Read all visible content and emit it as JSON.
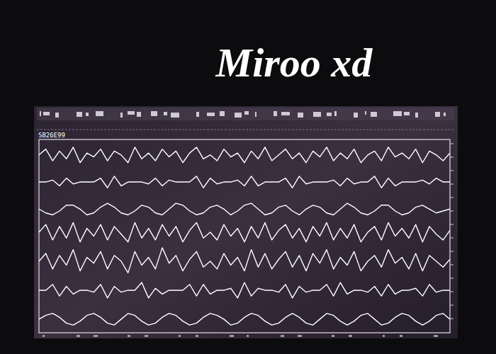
{
  "chart_data": {
    "type": "line",
    "title": "Miroo xd",
    "subtitle": "SB26E99",
    "x": [
      0,
      1,
      2,
      3,
      4,
      5,
      6,
      7,
      8,
      9,
      10,
      11,
      12,
      13,
      14,
      15,
      16,
      17,
      18,
      19,
      20,
      21,
      22,
      23,
      24,
      25,
      26,
      27,
      28,
      29,
      30,
      31,
      32,
      33,
      34,
      35,
      36,
      37,
      38,
      39,
      40,
      41,
      42,
      43,
      44,
      45,
      46,
      47,
      48,
      49,
      50,
      51,
      52,
      53,
      54,
      55,
      56,
      57,
      58,
      59,
      60
    ],
    "xlim": [
      0,
      60
    ],
    "ylim": [
      0,
      100
    ],
    "tick_labels": false,
    "grid": false,
    "series": [
      {
        "color": "#ffffff",
        "values": [
          92,
          95,
          89,
          94,
          90,
          96,
          88,
          93,
          91,
          95,
          89,
          94,
          92,
          88,
          96,
          90,
          93,
          89,
          95,
          91,
          94,
          88,
          93,
          96,
          90,
          92,
          89,
          95,
          91,
          93,
          88,
          94,
          90,
          96,
          89,
          92,
          95,
          90,
          93,
          88,
          94,
          91,
          96,
          89,
          93,
          90,
          95,
          88,
          92,
          94,
          89,
          96,
          91,
          93,
          90,
          95,
          88,
          94,
          92,
          89,
          93
        ]
      },
      {
        "color": "#ffffff",
        "values": [
          78,
          78,
          79,
          76,
          80,
          77,
          78,
          78,
          78,
          80,
          75,
          81,
          76,
          78,
          78,
          78,
          77,
          80,
          76,
          79,
          78,
          78,
          78,
          81,
          75,
          80,
          77,
          78,
          78,
          79,
          76,
          81,
          76,
          78,
          78,
          78,
          80,
          75,
          81,
          77,
          78,
          78,
          78,
          79,
          76,
          80,
          77,
          78,
          78,
          81,
          75,
          80,
          76,
          78,
          78,
          78,
          79,
          77,
          80,
          78,
          78
        ]
      },
      {
        "color": "#ffffff",
        "values": [
          64,
          62,
          61,
          63,
          66,
          66,
          64,
          61,
          62,
          65,
          67,
          65,
          62,
          61,
          63,
          66,
          65,
          62,
          61,
          64,
          67,
          66,
          63,
          61,
          62,
          65,
          66,
          64,
          61,
          63,
          66,
          67,
          64,
          61,
          62,
          65,
          66,
          63,
          61,
          64,
          66,
          65,
          62,
          61,
          64,
          67,
          65,
          62,
          61,
          63,
          66,
          66,
          63,
          61,
          62,
          65,
          66,
          64,
          62,
          63,
          64
        ]
      },
      {
        "color": "#ffffff",
        "values": [
          52,
          56,
          48,
          55,
          49,
          57,
          47,
          54,
          50,
          56,
          48,
          55,
          51,
          47,
          57,
          49,
          54,
          48,
          56,
          50,
          55,
          47,
          53,
          57,
          49,
          52,
          48,
          56,
          50,
          54,
          47,
          55,
          49,
          57,
          48,
          53,
          56,
          49,
          54,
          47,
          55,
          50,
          57,
          48,
          54,
          49,
          56,
          47,
          52,
          55,
          48,
          57,
          50,
          54,
          49,
          56,
          47,
          55,
          51,
          48,
          53
        ]
      },
      {
        "color": "#ffffff",
        "values": [
          37,
          41,
          33,
          40,
          35,
          43,
          32,
          39,
          36,
          42,
          33,
          40,
          37,
          31,
          42,
          35,
          39,
          33,
          44,
          36,
          40,
          32,
          38,
          42,
          34,
          37,
          33,
          41,
          35,
          39,
          32,
          43,
          34,
          41,
          33,
          38,
          42,
          34,
          40,
          32,
          41,
          36,
          43,
          33,
          39,
          35,
          42,
          32,
          37,
          40,
          34,
          43,
          36,
          39,
          33,
          41,
          32,
          40,
          37,
          34,
          38
        ]
      },
      {
        "color": "#ffffff",
        "values": [
          22,
          22,
          25,
          19,
          24,
          20,
          22,
          22,
          21,
          25,
          18,
          24,
          21,
          22,
          22,
          26,
          18,
          23,
          20,
          22,
          22,
          22,
          25,
          19,
          25,
          20,
          22,
          22,
          23,
          18,
          26,
          19,
          23,
          22,
          22,
          21,
          25,
          18,
          24,
          21,
          22,
          22,
          25,
          19,
          26,
          20,
          22,
          22,
          21,
          24,
          19,
          25,
          20,
          22,
          22,
          23,
          19,
          25,
          21,
          22,
          22
        ]
      },
      {
        "color": "#ffffff",
        "values": [
          7,
          9,
          10,
          8,
          5,
          4,
          6,
          9,
          10,
          8,
          5,
          4,
          7,
          10,
          9,
          6,
          4,
          5,
          8,
          10,
          9,
          6,
          4,
          5,
          8,
          10,
          9,
          7,
          4,
          5,
          8,
          10,
          9,
          6,
          4,
          5,
          8,
          10,
          8,
          5,
          4,
          7,
          10,
          9,
          6,
          4,
          6,
          9,
          10,
          7,
          4,
          5,
          8,
          10,
          9,
          6,
          4,
          6,
          9,
          10,
          7
        ]
      }
    ]
  }
}
